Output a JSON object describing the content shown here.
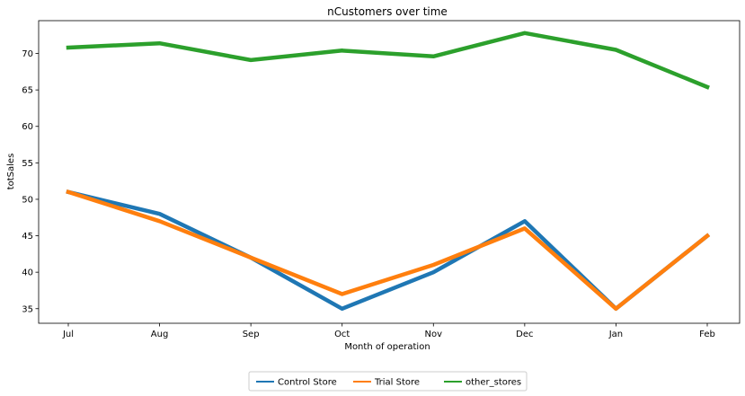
{
  "chart_data": {
    "type": "line",
    "title": "nCustomers over time",
    "xlabel": "Month of operation",
    "ylabel": "totSales",
    "categories": [
      "Jul",
      "Aug",
      "Sep",
      "Oct",
      "Nov",
      "Dec",
      "Jan",
      "Feb"
    ],
    "ylim": [
      33.0,
      74.5
    ],
    "yticks": [
      35,
      40,
      45,
      50,
      55,
      60,
      65,
      70
    ],
    "grid": false,
    "legend_position": "bottom-center",
    "series": [
      {
        "name": "Control Store",
        "color": "#1f77b4",
        "values": [
          51,
          48,
          42,
          35,
          40,
          47,
          35,
          45
        ]
      },
      {
        "name": "Trial Store",
        "color": "#ff7f0e",
        "values": [
          51,
          47,
          42,
          37,
          41,
          46,
          35,
          45
        ]
      },
      {
        "name": "other_stores",
        "color": "#2ca02c",
        "values": [
          70.8,
          71.4,
          69.1,
          70.4,
          69.6,
          72.8,
          70.5,
          65.4
        ]
      }
    ]
  }
}
